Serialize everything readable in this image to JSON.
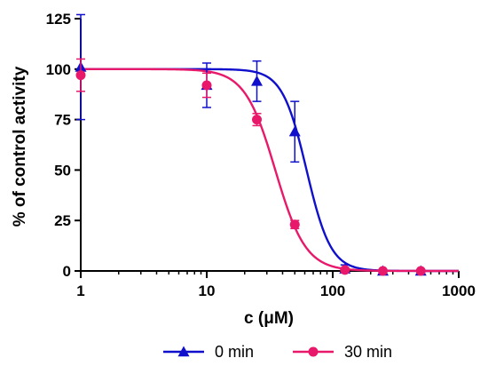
{
  "chart_data": {
    "type": "scatter",
    "xlabel": "c (μM)",
    "ylabel": "% of control activity",
    "xscale": "log",
    "xlim": [
      1,
      1000
    ],
    "ylim": [
      0,
      125
    ],
    "xticks": [
      1,
      10,
      100,
      1000
    ],
    "xtick_labels": [
      "1",
      "10",
      "100",
      "1000"
    ],
    "yticks": [
      0,
      25,
      50,
      75,
      100,
      125
    ],
    "ytick_labels": [
      "0",
      "25",
      "50",
      "75",
      "100",
      "125"
    ],
    "grid": false,
    "legend_position": "bottom",
    "series": [
      {
        "name": "0 min",
        "color": "#1010cc",
        "marker": "triangle",
        "x": [
          1,
          10,
          25,
          50,
          125,
          250,
          500
        ],
        "y": [
          101,
          92,
          94,
          69,
          1,
          0,
          0
        ],
        "err": [
          26,
          11,
          10,
          15,
          2,
          0.5,
          0.5
        ],
        "fit": {
          "top": 100,
          "bottom": 0,
          "ic50": 62,
          "hill": 4.5
        }
      },
      {
        "name": "30 min",
        "color": "#e8186a",
        "marker": "circle",
        "x": [
          1,
          10,
          25,
          50,
          125,
          250,
          500
        ],
        "y": [
          97,
          92,
          75,
          23,
          0.5,
          0,
          0
        ],
        "err": [
          8,
          6,
          3,
          2,
          1,
          0.5,
          0.5
        ],
        "fit": {
          "top": 100,
          "bottom": 0,
          "ic50": 35,
          "hill": 3.6
        }
      }
    ]
  }
}
